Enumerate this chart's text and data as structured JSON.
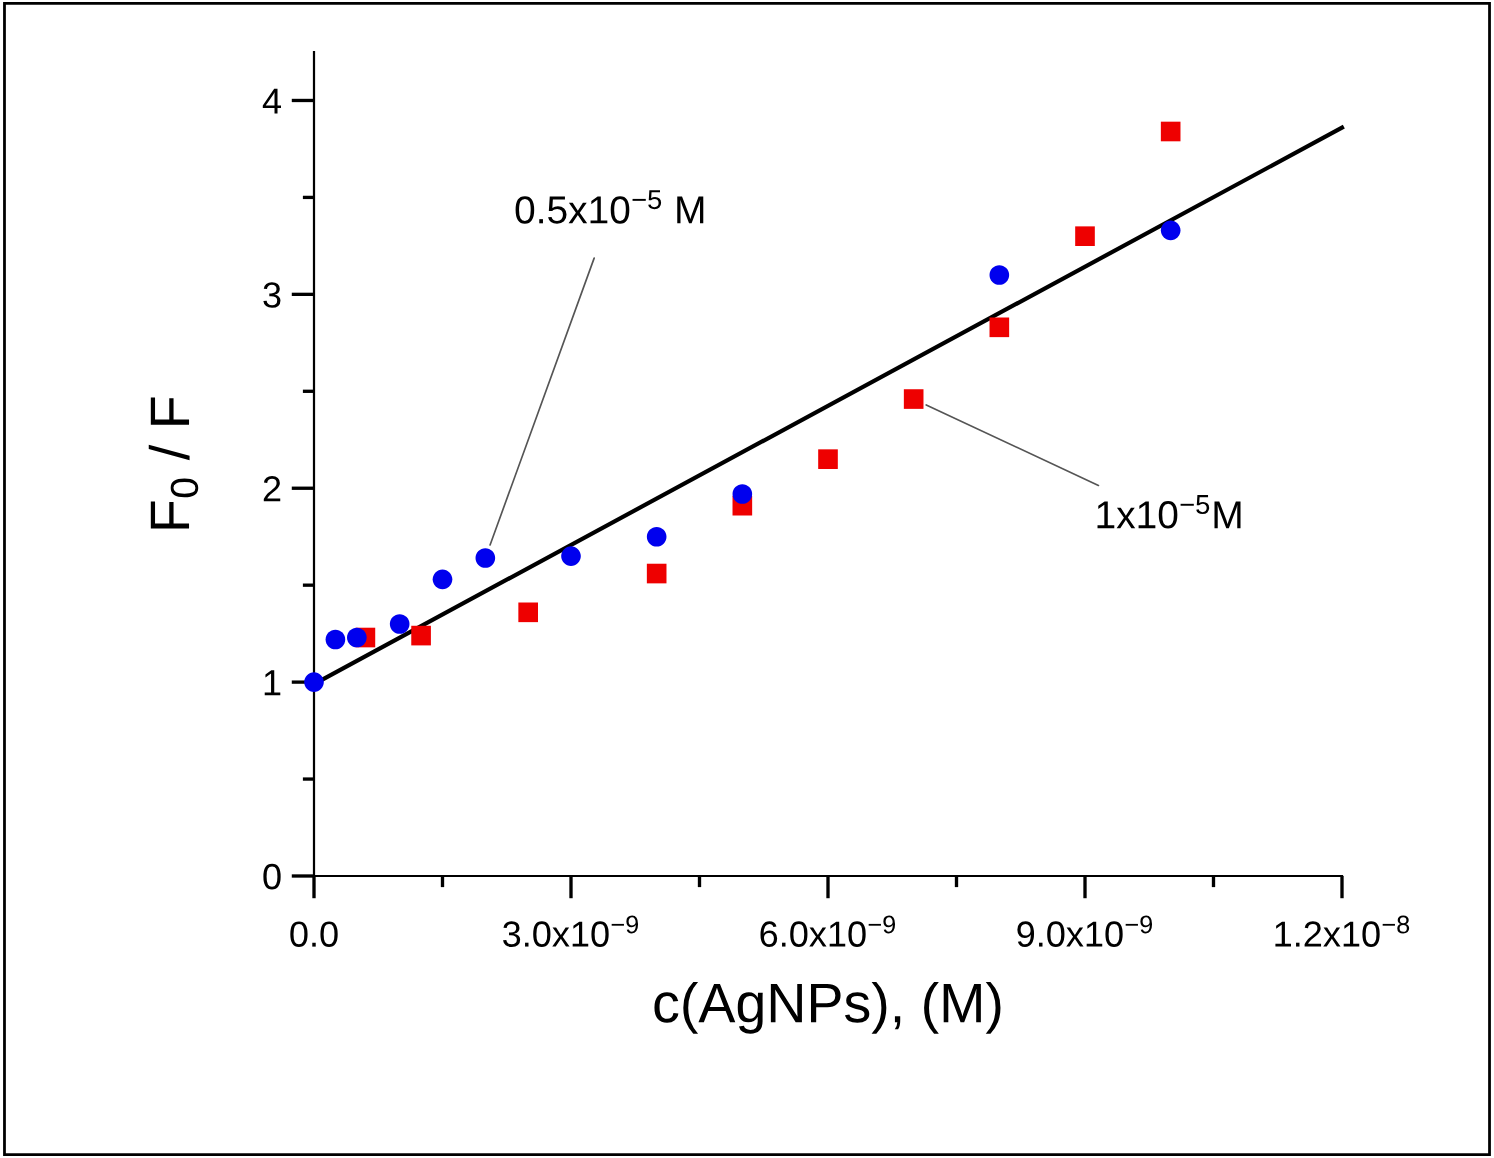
{
  "chart_data": {
    "type": "scatter",
    "xlabel": "c(AgNPs), (M)",
    "ylabel": "F$_{0}$ / F",
    "xlim": [
      0,
      1.2e-08
    ],
    "ylim": [
      0,
      4.25
    ],
    "xticks": [
      {
        "value": 0,
        "label": "0.0"
      },
      {
        "value": 1.5e-09,
        "label": null
      },
      {
        "value": 3e-09,
        "label": "3.0x10$^{−9}$"
      },
      {
        "value": 4.5e-09,
        "label": null
      },
      {
        "value": 6e-09,
        "label": "6.0x10$^{−9}$"
      },
      {
        "value": 7.5e-09,
        "label": null
      },
      {
        "value": 9e-09,
        "label": "9.0x10$^{−9}$"
      },
      {
        "value": 1.05e-08,
        "label": null
      },
      {
        "value": 1.2e-08,
        "label": "1.2x10$^{−8}$"
      }
    ],
    "yticks": [
      0,
      {
        "value": 0.5,
        "label": null
      },
      1,
      {
        "value": 1.5,
        "label": null
      },
      2,
      {
        "value": 2.5,
        "label": null
      },
      3,
      {
        "value": 3.5,
        "label": null
      },
      4
    ],
    "grid": false,
    "legend": false,
    "series": [
      {
        "marker": "circle",
        "color": "#0000ee",
        "x": [
          0,
          2.5e-10,
          5e-10,
          1e-09,
          1.5e-09,
          2e-09,
          3e-09,
          4e-09,
          5e-09,
          8e-09,
          1e-08
        ],
        "values": [
          1.0,
          1.22,
          1.23,
          1.3,
          1.53,
          1.64,
          1.65,
          1.75,
          1.97,
          3.1,
          3.33
        ]
      },
      {
        "marker": "square",
        "color": "#ee0000",
        "x": [
          6e-10,
          1.25e-09,
          2.5e-09,
          4e-09,
          5e-09,
          6e-09,
          7e-09,
          8e-09,
          9e-09,
          1e-08
        ],
        "values": [
          1.23,
          1.24,
          1.36,
          1.56,
          1.91,
          2.15,
          2.46,
          2.83,
          3.3,
          3.84
        ]
      },
      {
        "type": "line",
        "marker": "none",
        "line_style": "solid",
        "color": "#000000",
        "x": [
          0,
          1.2e-08
        ],
        "values": [
          0.99,
          3.86
        ]
      }
    ],
    "annotations": [
      {
        "text": "0.5x10$^{−5}$ M",
        "x": 2e-09,
        "y": 1.64
      },
      {
        "text": "1x10$^{−5}$M",
        "x": 7e-09,
        "y": 2.46
      }
    ]
  }
}
